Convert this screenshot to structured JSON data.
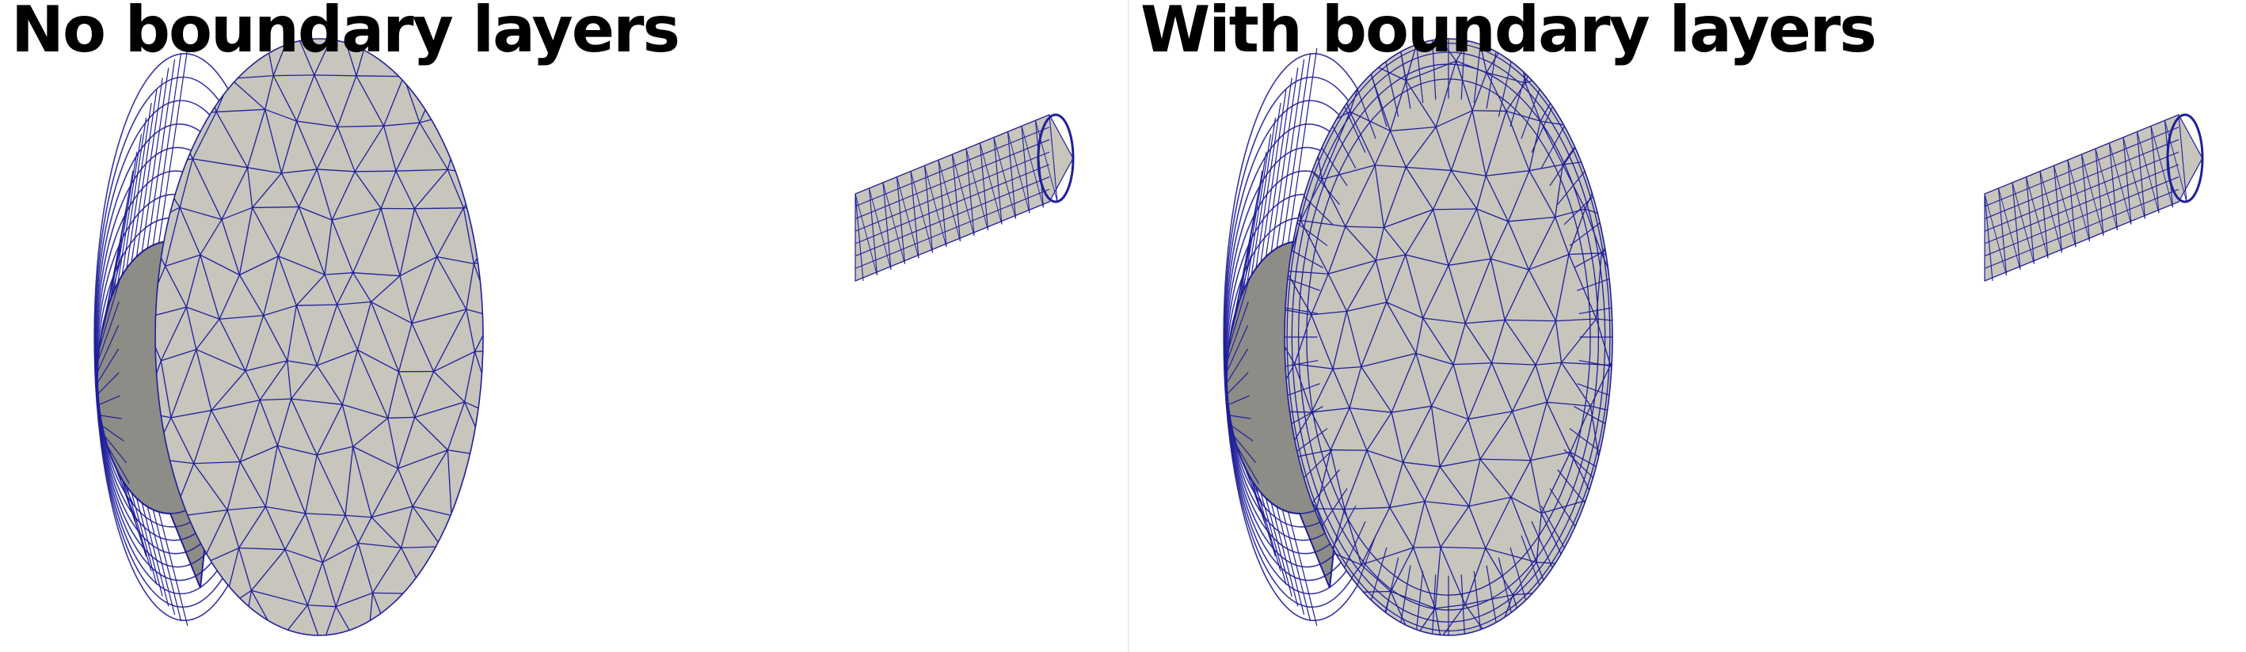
{
  "panels": [
    {
      "title": "No boundary layers",
      "boundary_layers": false
    },
    {
      "title": "With boundary layers",
      "boundary_layers": true
    }
  ],
  "colors": {
    "background": "#ffffff",
    "title_text": "#000000",
    "surface_fill": "#c7c5bc",
    "surface_side": "#8d8c86",
    "mesh_edges": "#1f1f9a",
    "divider": "#eeeeee"
  }
}
